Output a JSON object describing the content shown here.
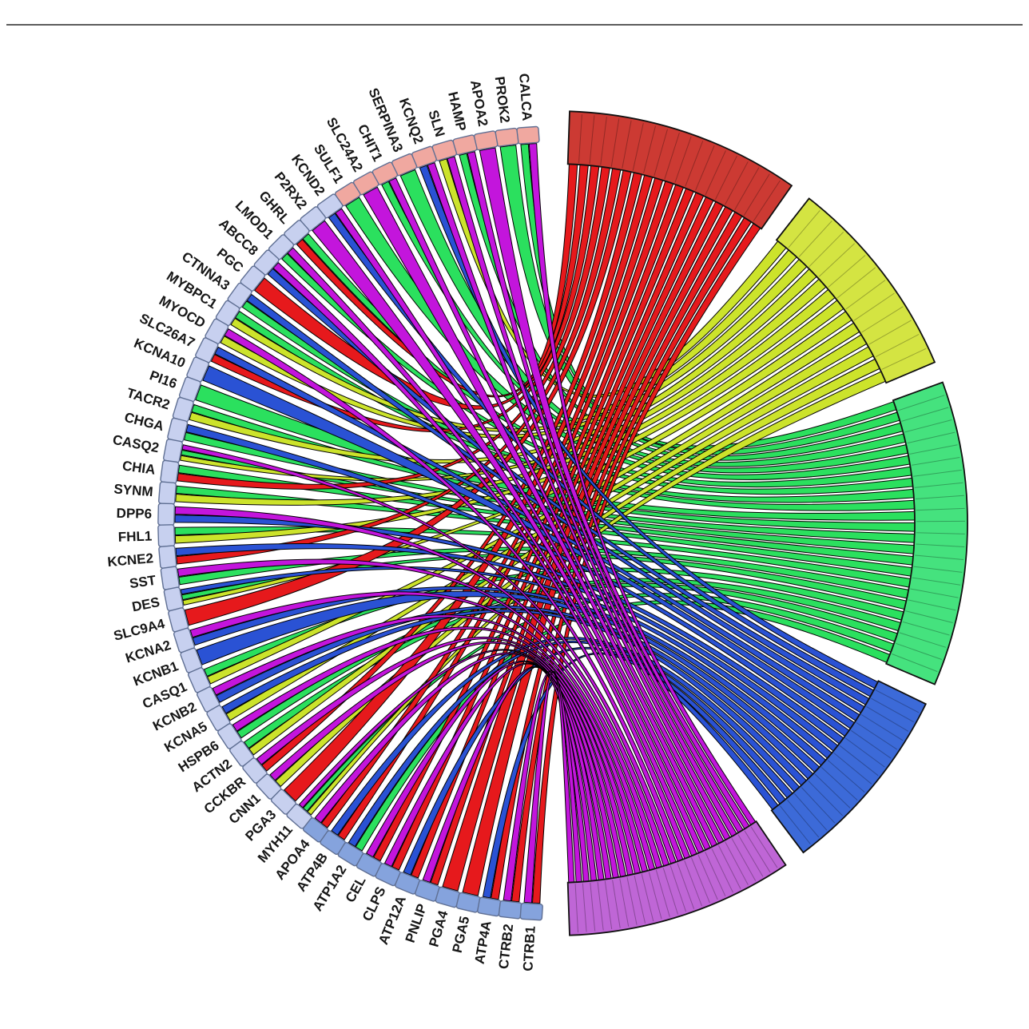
{
  "chart_data": {
    "type": "chord",
    "layout": {
      "gene_arc_start_deg": -4,
      "gene_arc_step_deg": 3.1364,
      "draw_order": [
        "green",
        "yellow",
        "red",
        "blue",
        "magenta"
      ],
      "background": "#ffffff"
    },
    "clusters": [
      {
        "id": "red",
        "arc_color": "#cc3a33",
        "ribbon_color": "#e6191c",
        "start": 2,
        "end": 35
      },
      {
        "id": "yellow",
        "arc_color": "#d4e442",
        "ribbon_color": "#cce32b",
        "start": 38,
        "end": 67
      },
      {
        "id": "green",
        "arc_color": "#45e27e",
        "ribbon_color": "#2be05e",
        "start": 70,
        "end": 113
      },
      {
        "id": "blue",
        "arc_color": "#3c6ad8",
        "ribbon_color": "#2a52d4",
        "start": 116,
        "end": 143
      },
      {
        "id": "magenta",
        "arc_color": "#bf66d6",
        "ribbon_color": "#c315dc",
        "start": 146,
        "end": 178
      }
    ],
    "genes": [
      {
        "name": "CALCA",
        "square": "#f0a8a0",
        "links": [
          "green",
          "magenta"
        ]
      },
      {
        "name": "PROK2",
        "square": "#f0a8a0",
        "links": [
          "green"
        ]
      },
      {
        "name": "APOA2",
        "square": "#f0a8a0",
        "links": [
          "magenta"
        ]
      },
      {
        "name": "HAMP",
        "square": "#f0a8a0",
        "links": [
          "green",
          "magenta"
        ]
      },
      {
        "name": "SLN",
        "square": "#f0a8a0",
        "links": [
          "yellow",
          "magenta"
        ]
      },
      {
        "name": "KCNQ2",
        "square": "#f0a8a0",
        "links": [
          "blue",
          "magenta"
        ]
      },
      {
        "name": "SERPINA3",
        "square": "#f0a8a0",
        "links": [
          "green"
        ]
      },
      {
        "name": "CHIT1",
        "square": "#f0a8a0",
        "links": [
          "green",
          "magenta"
        ]
      },
      {
        "name": "SLC24A2",
        "square": "#f0a8a0",
        "links": [
          "magenta"
        ]
      },
      {
        "name": "SULF1",
        "square": "#f0a8a0",
        "links": [
          "green"
        ]
      },
      {
        "name": "KCND2",
        "square": "#c7d0ef",
        "links": [
          "blue",
          "magenta"
        ]
      },
      {
        "name": "P2RX2",
        "square": "#c7d0ef",
        "links": [
          "magenta"
        ]
      },
      {
        "name": "GHRL",
        "square": "#c7d0ef",
        "links": [
          "red",
          "green"
        ]
      },
      {
        "name": "LMOD1",
        "square": "#c7d0ef",
        "links": [
          "green",
          "magenta"
        ]
      },
      {
        "name": "ABCC8",
        "square": "#c7d0ef",
        "links": [
          "blue",
          "magenta"
        ]
      },
      {
        "name": "PGC",
        "square": "#c7d0ef",
        "links": [
          "red"
        ]
      },
      {
        "name": "CTNNA3",
        "square": "#c7d0ef",
        "links": [
          "green",
          "blue"
        ]
      },
      {
        "name": "MYBPC1",
        "square": "#c7d0ef",
        "links": [
          "yellow",
          "green"
        ]
      },
      {
        "name": "MYOCD",
        "square": "#c7d0ef",
        "links": [
          "yellow",
          "magenta"
        ]
      },
      {
        "name": "SLC26A7",
        "square": "#c7d0ef",
        "links": [
          "red",
          "blue"
        ]
      },
      {
        "name": "KCNA10",
        "square": "#c7d0ef",
        "links": [
          "blue"
        ]
      },
      {
        "name": "PI16",
        "square": "#c7d0ef",
        "links": [
          "green"
        ]
      },
      {
        "name": "TACR2",
        "square": "#c7d0ef",
        "links": [
          "yellow",
          "green"
        ]
      },
      {
        "name": "CHGA",
        "square": "#c7d0ef",
        "links": [
          "green",
          "blue"
        ]
      },
      {
        "name": "CASQ2",
        "square": "#c7d0ef",
        "links": [
          "yellow",
          "green",
          "magenta"
        ]
      },
      {
        "name": "CHIA",
        "square": "#c7d0ef",
        "links": [
          "red",
          "green"
        ]
      },
      {
        "name": "SYNM",
        "square": "#c7d0ef",
        "links": [
          "yellow",
          "green"
        ]
      },
      {
        "name": "DPP6",
        "square": "#c7d0ef",
        "links": [
          "blue",
          "magenta"
        ]
      },
      {
        "name": "FHL1",
        "square": "#c7d0ef",
        "links": [
          "yellow",
          "green"
        ]
      },
      {
        "name": "KCNE2",
        "square": "#c7d0ef",
        "links": [
          "red",
          "blue"
        ]
      },
      {
        "name": "SST",
        "square": "#c7d0ef",
        "links": [
          "green",
          "magenta"
        ]
      },
      {
        "name": "DES",
        "square": "#c7d0ef",
        "links": [
          "yellow",
          "green",
          "blue"
        ]
      },
      {
        "name": "SLC9A4",
        "square": "#c7d0ef",
        "links": [
          "red"
        ]
      },
      {
        "name": "KCNA2",
        "square": "#c7d0ef",
        "links": [
          "blue",
          "magenta"
        ]
      },
      {
        "name": "KCNB1",
        "square": "#c7d0ef",
        "links": [
          "blue"
        ]
      },
      {
        "name": "CASQ1",
        "square": "#c7d0ef",
        "links": [
          "yellow",
          "green"
        ]
      },
      {
        "name": "KCNB2",
        "square": "#c7d0ef",
        "links": [
          "blue",
          "magenta"
        ]
      },
      {
        "name": "KCNA5",
        "square": "#c7d0ef",
        "links": [
          "yellow",
          "blue"
        ]
      },
      {
        "name": "HSPB6",
        "square": "#c7d0ef",
        "links": [
          "green",
          "magenta"
        ]
      },
      {
        "name": "ACTN2",
        "square": "#c7d0ef",
        "links": [
          "yellow",
          "green"
        ]
      },
      {
        "name": "CCKBR",
        "square": "#c7d0ef",
        "links": [
          "red",
          "magenta"
        ]
      },
      {
        "name": "CNN1",
        "square": "#c7d0ef",
        "links": [
          "yellow",
          "magenta"
        ]
      },
      {
        "name": "PGA3",
        "square": "#c7d0ef",
        "links": [
          "red"
        ]
      },
      {
        "name": "MYH11",
        "square": "#c7d0ef",
        "links": [
          "yellow",
          "green",
          "magenta"
        ]
      },
      {
        "name": "APOA4",
        "square": "#85a3dd",
        "links": [
          "red",
          "magenta"
        ]
      },
      {
        "name": "ATP4B",
        "square": "#85a3dd",
        "links": [
          "red",
          "blue"
        ]
      },
      {
        "name": "ATP1A2",
        "square": "#85a3dd",
        "links": [
          "green",
          "blue"
        ]
      },
      {
        "name": "CEL",
        "square": "#85a3dd",
        "links": [
          "red",
          "magenta"
        ]
      },
      {
        "name": "CLPS",
        "square": "#85a3dd",
        "links": [
          "red",
          "magenta"
        ]
      },
      {
        "name": "ATP12A",
        "square": "#85a3dd",
        "links": [
          "red",
          "blue"
        ]
      },
      {
        "name": "PNLIP",
        "square": "#85a3dd",
        "links": [
          "red",
          "magenta"
        ]
      },
      {
        "name": "PGA4",
        "square": "#85a3dd",
        "links": [
          "red"
        ]
      },
      {
        "name": "PGA5",
        "square": "#85a3dd",
        "links": [
          "red"
        ]
      },
      {
        "name": "ATP4A",
        "square": "#85a3dd",
        "links": [
          "red",
          "blue"
        ]
      },
      {
        "name": "CTRB2",
        "square": "#85a3dd",
        "links": [
          "red",
          "magenta"
        ]
      },
      {
        "name": "CTRB1",
        "square": "#85a3dd",
        "links": [
          "red",
          "magenta"
        ]
      }
    ]
  }
}
